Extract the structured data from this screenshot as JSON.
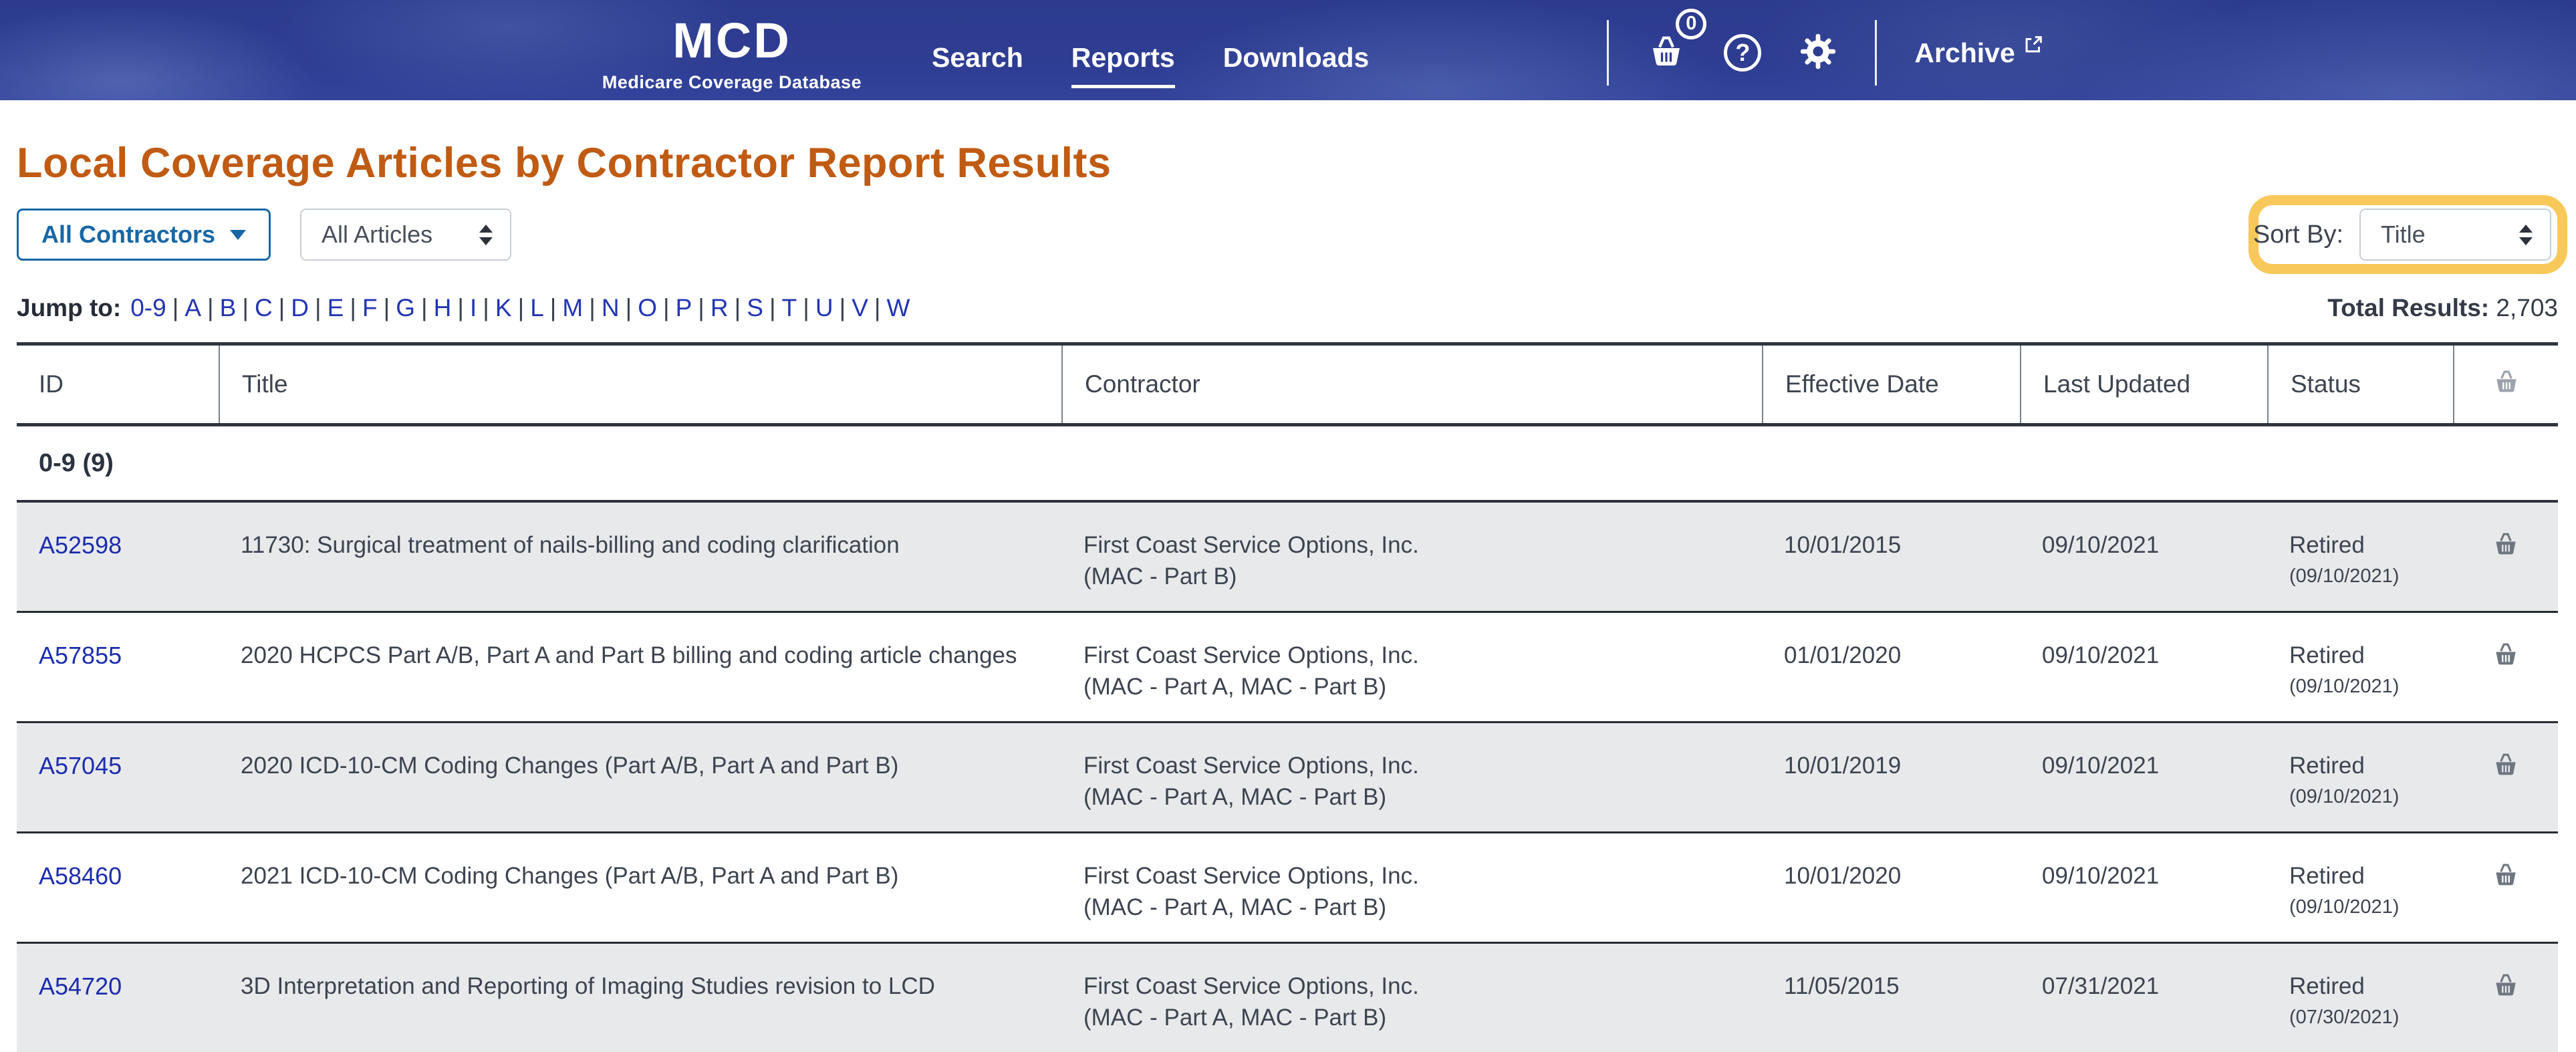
{
  "header": {
    "logo": {
      "title": "MCD",
      "subtitle": "Medicare Coverage Database"
    },
    "nav": [
      {
        "label": "Search",
        "active": false
      },
      {
        "label": "Reports",
        "active": true
      },
      {
        "label": "Downloads",
        "active": false
      }
    ],
    "basket_count": "0",
    "help_glyph": "?",
    "archive_label": "Archive",
    "icons": [
      "basket-icon",
      "question-circle-icon",
      "gear-icon",
      "external-link-icon"
    ]
  },
  "page": {
    "title": "Local Coverage Articles by Contractor Report Results",
    "filters": {
      "contractors_label": "All Contractors",
      "articles_value": "All Articles",
      "sort_by_label": "Sort By:",
      "sort_by_value": "Title"
    },
    "jump": {
      "label": "Jump to:",
      "separator": "|",
      "links": [
        "0-9",
        "A",
        "B",
        "C",
        "D",
        "E",
        "F",
        "G",
        "H",
        "I",
        "K",
        "L",
        "M",
        "N",
        "O",
        "P",
        "R",
        "S",
        "T",
        "U",
        "V",
        "W"
      ]
    },
    "total_results_label": "Total Results:",
    "total_results_value": "2,703"
  },
  "table": {
    "columns": [
      "ID",
      "Title",
      "Contractor",
      "Effective Date",
      "Last Updated",
      "Status"
    ],
    "section_label": "0-9 (9)",
    "rows": [
      {
        "id": "A52598",
        "title": "11730: Surgical treatment of nails-billing and coding clarification",
        "contractor_line1": "First Coast Service Options, Inc.",
        "contractor_line2": "(MAC - Part B)",
        "effective_date": "10/01/2015",
        "last_updated": "09/10/2021",
        "status": "Retired",
        "status_date": "(09/10/2021)"
      },
      {
        "id": "A57855",
        "title": "2020 HCPCS Part A/B, Part A and Part B billing and coding article changes",
        "contractor_line1": "First Coast Service Options, Inc.",
        "contractor_line2": "(MAC - Part A, MAC - Part B)",
        "effective_date": "01/01/2020",
        "last_updated": "09/10/2021",
        "status": "Retired",
        "status_date": "(09/10/2021)"
      },
      {
        "id": "A57045",
        "title": "2020 ICD-10-CM Coding Changes (Part A/B, Part A and Part B)",
        "contractor_line1": "First Coast Service Options, Inc.",
        "contractor_line2": "(MAC - Part A, MAC - Part B)",
        "effective_date": "10/01/2019",
        "last_updated": "09/10/2021",
        "status": "Retired",
        "status_date": "(09/10/2021)"
      },
      {
        "id": "A58460",
        "title": "2021 ICD-10-CM Coding Changes (Part A/B, Part A and Part B)",
        "contractor_line1": "First Coast Service Options, Inc.",
        "contractor_line2": "(MAC - Part A, MAC - Part B)",
        "effective_date": "10/01/2020",
        "last_updated": "09/10/2021",
        "status": "Retired",
        "status_date": "(09/10/2021)"
      },
      {
        "id": "A54720",
        "title": "3D Interpretation and Reporting of Imaging Studies revision to LCD",
        "contractor_line1": "First Coast Service Options, Inc.",
        "contractor_line2": "(MAC - Part A, MAC - Part B)",
        "effective_date": "11/05/2015",
        "last_updated": "07/31/2021",
        "status": "Retired",
        "status_date": "(07/30/2021)"
      }
    ]
  },
  "colors": {
    "header_bg": "#2c3b8e",
    "title_orange": "#c05b13",
    "link_blue": "#1b2dad",
    "jump_link_blue": "#2236b2",
    "contractors_blue": "#1767a5",
    "body_text": "#3d4450",
    "row_alt_bg": "#e8e9eb",
    "row_border": "#262b33",
    "highlight_yellow": "#f8c85a",
    "icon_gray": "#6e7680",
    "header_icon_gray": "#9ba2ac"
  }
}
